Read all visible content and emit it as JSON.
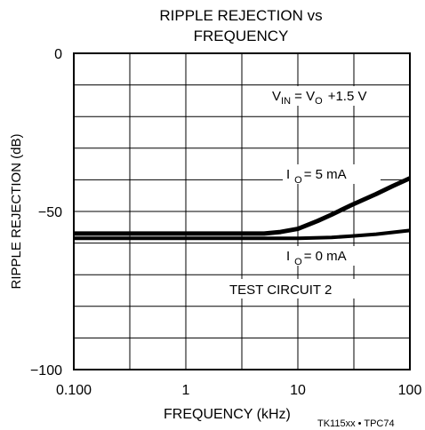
{
  "chart_data": {
    "type": "line",
    "title_line1": "RIPPLE REJECTION vs",
    "title_line2": "FREQUENCY",
    "xlabel": "FREQUENCY (kHz)",
    "ylabel": "RIPPLE REJECTION (dB)",
    "footnote": "TK115xx • TPC74",
    "xscale": "log",
    "xlim": [
      0.1,
      100
    ],
    "ylim": [
      -100,
      0
    ],
    "grid": true,
    "x_ticks": [
      {
        "value": 0.1,
        "label": "0.100"
      },
      {
        "value": 1,
        "label": "1"
      },
      {
        "value": 10,
        "label": "10"
      },
      {
        "value": 100,
        "label": "100"
      }
    ],
    "y_ticks": [
      {
        "value": 0,
        "label": "0"
      },
      {
        "value": -50,
        "label": "−50"
      },
      {
        "value": -100,
        "label": "−100"
      }
    ],
    "annotations": {
      "condition": {
        "v": "V",
        "in_sub": "IN",
        "eq": " = V",
        "o_sub": "O",
        "rest": "+1.5 V"
      },
      "test_circuit": "TEST CIRCUIT 2"
    },
    "series": [
      {
        "name": "I O = 5 mA",
        "label_main": "I",
        "label_sub": "O",
        "label_rest": "= 5 mA",
        "x": [
          0.1,
          1,
          3,
          5,
          7,
          10,
          15,
          20,
          30,
          50,
          70,
          100
        ],
        "y": [
          -57,
          -57,
          -57,
          -57,
          -56.5,
          -55.5,
          -53,
          -51,
          -48,
          -44.5,
          -42,
          -39.5
        ]
      },
      {
        "name": "I O = 0 mA",
        "label_main": "I",
        "label_sub": "O",
        "label_rest": "= 0 mA",
        "x": [
          0.1,
          1,
          5,
          10,
          20,
          30,
          50,
          100
        ],
        "y": [
          -58.5,
          -58.5,
          -58.5,
          -58.5,
          -58.2,
          -57.8,
          -57.2,
          -56
        ]
      }
    ]
  }
}
